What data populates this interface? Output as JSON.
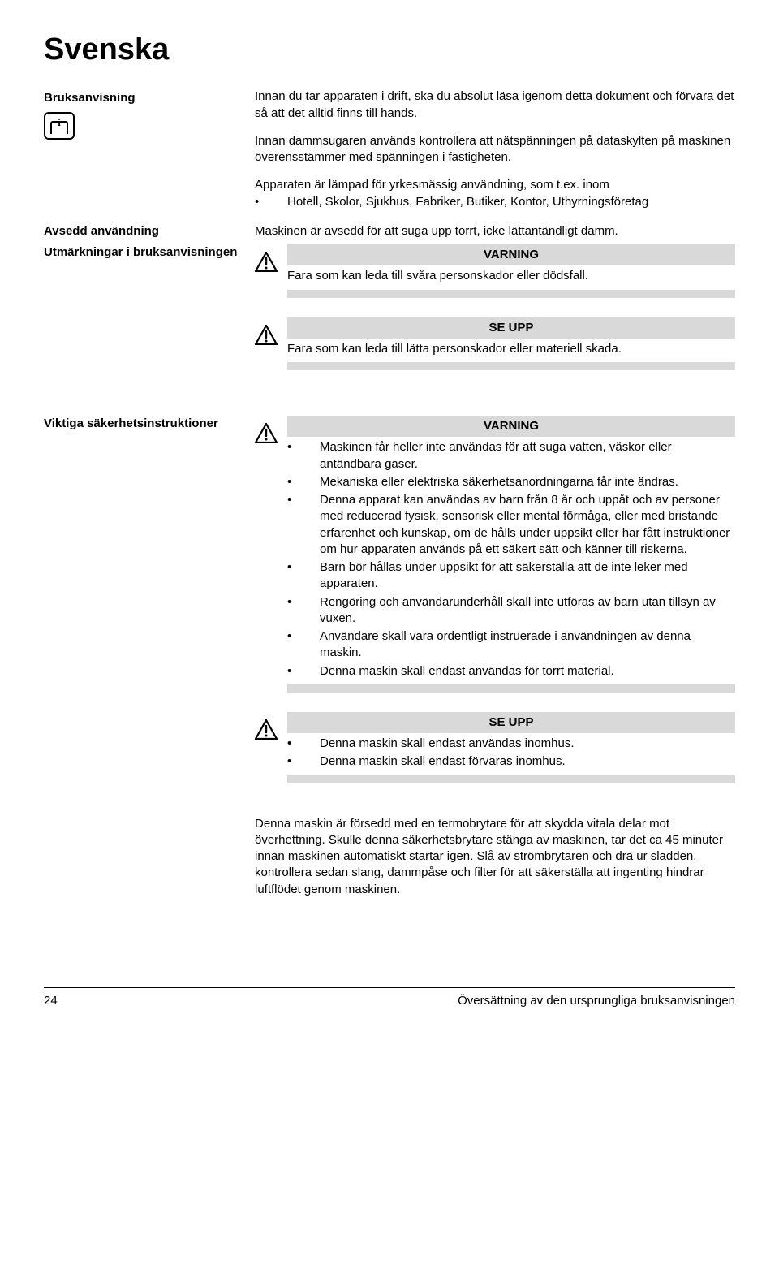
{
  "title": "Svenska",
  "sections": {
    "bruksanvisning_label": "Bruksanvisning",
    "intro_p1": "Innan du tar apparaten i drift, ska du absolut läsa igenom detta dokument och förvara det så att det alltid finns till hands.",
    "intro_p2": "Innan dammsugaren används kontrollera att nätspänningen på dataskylten på maskinen överensstämmer med spänningen i fastigheten.",
    "scope_p": "Apparaten är lämpad för yrkesmässig användning, som t.ex. inom",
    "scope_bullet": "Hotell, Skolor, Sjukhus, Fabriker, Butiker, Kontor, Uthyrningsföretag",
    "avsedd_label": "Avsedd användning",
    "avsedd_text": "Maskinen är avsedd för att suga upp torrt, icke lättantändligt damm.",
    "utmark_label": "Utmärkningar i bruksanvisningen",
    "varning_title": "VARNING",
    "varning_text": "Fara som kan leda till svåra personskador eller dödsfall.",
    "seupp_title": "SE UPP",
    "seupp_text": "Fara som kan leda till lätta personskador eller materiell skada.",
    "viktiga_label": "Viktiga säkerhetsinstruktioner",
    "varning2_bullets": [
      "Maskinen får heller inte användas för att suga vatten, väskor eller antändbara gaser.",
      "Mekaniska eller elektriska säkerhetsanordningarna får inte ändras.",
      "Denna apparat kan användas av barn från 8 år och uppåt och av personer med reducerad fysisk, sensorisk eller mental förmåga, eller med bristande erfarenhet och kunskap, om de hålls under uppsikt eller har fått instruktioner om hur apparaten används på ett säkert sätt och känner till riskerna.",
      "Barn bör hållas under uppsikt för att säkerställa att de inte leker med apparaten.",
      "Rengöring och användarunderhåll skall inte utföras av barn utan tillsyn av vuxen.",
      "Användare skall vara ordentligt instruerade i användningen av denna maskin.",
      "Denna maskin skall endast användas för torrt material."
    ],
    "seupp2_bullets": [
      "Denna maskin skall endast användas inomhus.",
      "Denna maskin skall endast förvaras inomhus."
    ],
    "thermo_text": "Denna maskin är försedd med en termobrytare för att skydda vitala delar mot överhettning. Skulle denna säkerhetsbrytare stänga av maskinen, tar det ca 45 minuter innan maskinen automatiskt startar igen. Slå av strömbrytaren och dra ur sladden, kontrollera sedan slang, dammpåse och filter för att säkerställa att ingenting hindrar luftflödet genom maskinen."
  },
  "footer": {
    "page": "24",
    "text": "Översättning av den ursprungliga bruksanvisningen"
  },
  "colors": {
    "bar_bg": "#d9d9d9"
  }
}
